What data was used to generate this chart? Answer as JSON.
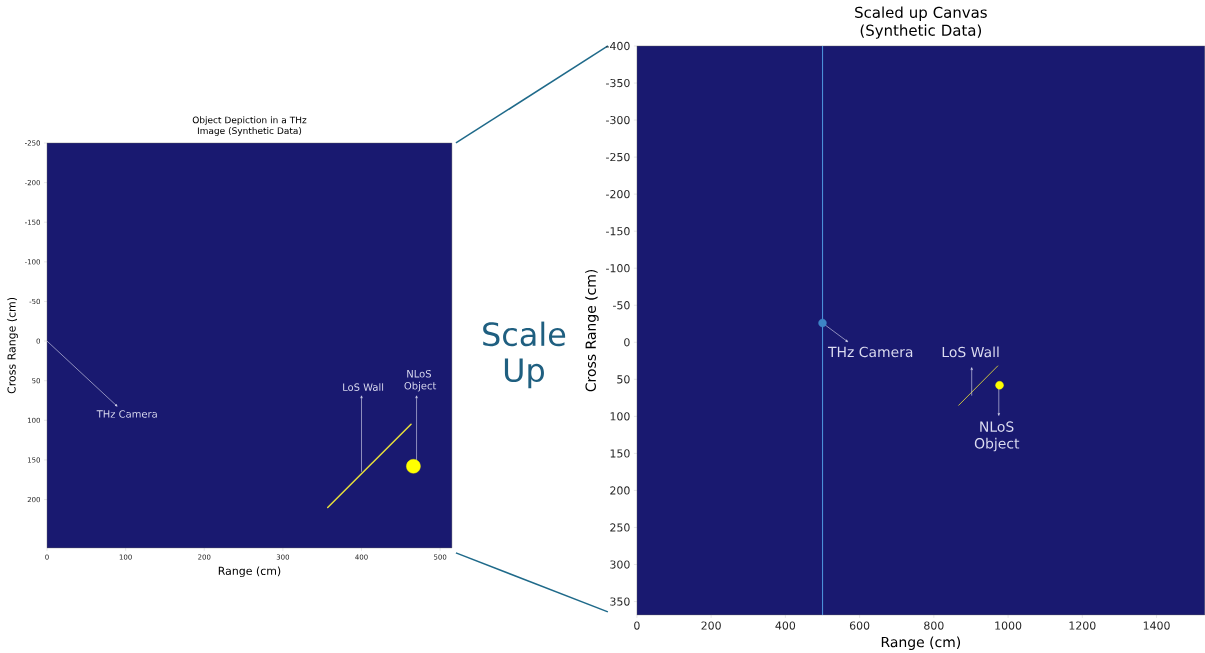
{
  "chart_data": [
    {
      "type": "scatter",
      "title": "Object Depiction in a THz Image (Synthetic Data)",
      "xlabel": "Range (cm)",
      "ylabel": "Cross Range (cm)",
      "xlim": [
        0,
        515
      ],
      "ylim": [
        261,
        -250
      ],
      "xticks": [
        0,
        100,
        200,
        300,
        400,
        500
      ],
      "yticks": [
        -250,
        -200,
        -150,
        -100,
        -50,
        0,
        50,
        100,
        150,
        200
      ],
      "series": [
        {
          "type": "line",
          "color": "#e8e03a",
          "x": [
            357,
            463
          ],
          "values": [
            210,
            105
          ]
        },
        {
          "type": "scatter",
          "color": "#ffff00",
          "x": [
            466
          ],
          "values": [
            158
          ]
        }
      ],
      "annotations": [
        "THz Camera",
        {
          "text": "LoS Wall",
          "x": 400,
          "y": 165
        },
        {
          "text": "NLoS Object",
          "x": 470,
          "y": 150
        }
      ]
    },
    {
      "type": "other",
      "annotations": [
        "Scale Up"
      ]
    },
    {
      "type": "scatter",
      "title": "Scaled up Canvas (Synthetic Data)",
      "xlabel": "Range (cm)",
      "ylabel": "Cross Range (cm)",
      "xlim": [
        0,
        1530
      ],
      "ylim": [
        368,
        -400
      ],
      "xticks": [
        0,
        200,
        400,
        600,
        800,
        1000,
        1200,
        1400
      ],
      "yticks": [
        -400,
        -350,
        -300,
        -250,
        -200,
        -150,
        -100,
        -50,
        0,
        50,
        100,
        150,
        200,
        250,
        300,
        350
      ],
      "ref_lines": [
        {
          "axis": "x",
          "value": 500,
          "color": "#4a8fd8"
        }
      ],
      "series": [
        {
          "type": "scatter",
          "color": "#3d85c6",
          "x": [
            500
          ],
          "values": [
            -26
          ]
        },
        {
          "type": "line",
          "color": "#c8c040",
          "x": [
            867,
            972
          ],
          "values": [
            85,
            32
          ]
        },
        {
          "type": "scatter",
          "color": "#ffff00",
          "x": [
            977
          ],
          "values": [
            58
          ]
        }
      ],
      "annotations": [
        {
          "text": "THz Camera",
          "x": 500,
          "y": -26
        },
        {
          "text": "LoS Wall",
          "x": 902,
          "y": 72
        },
        {
          "text": "NLoS Object",
          "x": 975,
          "y": 55
        }
      ]
    }
  ]
}
